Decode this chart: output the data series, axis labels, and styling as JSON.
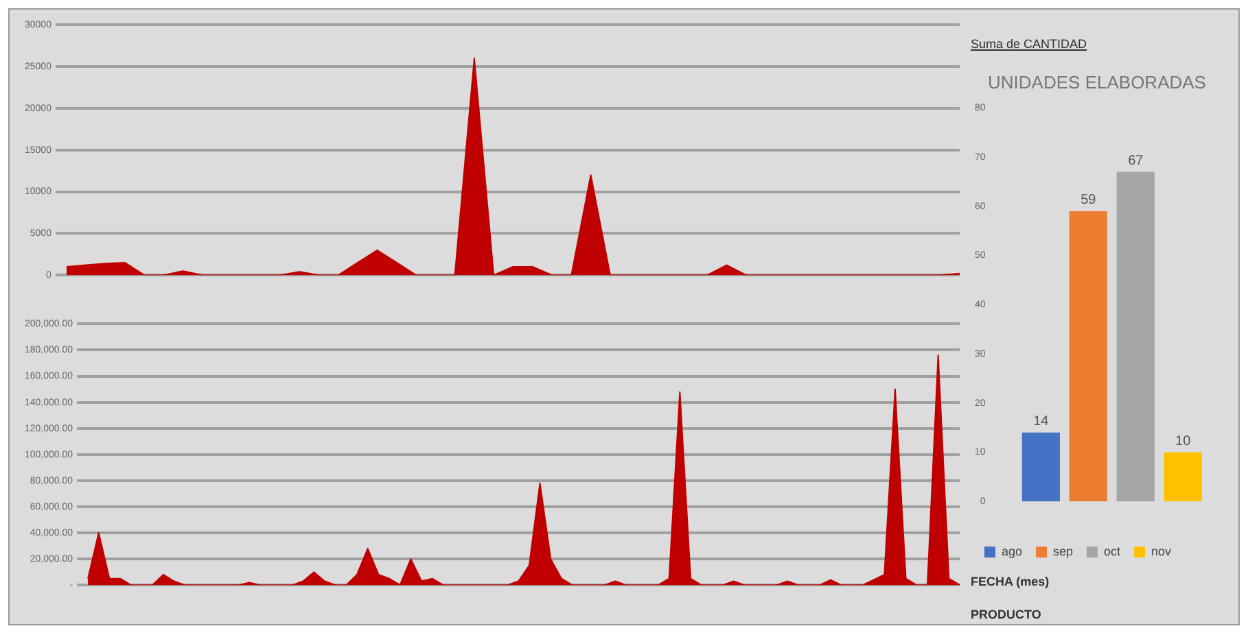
{
  "chart_data": [
    {
      "type": "area",
      "categories": [
        null,
        null,
        null,
        null,
        null,
        null,
        null,
        null,
        null,
        null,
        null,
        null,
        null,
        null,
        null,
        null,
        null,
        null,
        null,
        null,
        null,
        null,
        null,
        null,
        null,
        null,
        null,
        null,
        null,
        null,
        null,
        null,
        null,
        null,
        null,
        null,
        null,
        null,
        null,
        null,
        null,
        null,
        null,
        null,
        null,
        null,
        null
      ],
      "series": [
        {
          "color": "#c00000",
          "values": [
            1000,
            1200,
            1400,
            1500,
            0,
            0,
            500,
            0,
            0,
            0,
            0,
            0,
            400,
            0,
            0,
            1500,
            3000,
            1500,
            0,
            0,
            0,
            26000,
            0,
            1000,
            1000,
            0,
            0,
            12000,
            0,
            0,
            0,
            0,
            0,
            0,
            1200,
            0,
            0,
            0,
            0,
            0,
            0,
            0,
            0,
            0,
            0,
            0,
            200
          ]
        }
      ],
      "ylim": [
        0,
        30000
      ],
      "yticks": [
        0,
        5000,
        10000,
        15000,
        20000,
        25000,
        30000
      ],
      "grid": "y"
    },
    {
      "type": "area",
      "categories": [
        null,
        null,
        null,
        null,
        null,
        null,
        null,
        null,
        null,
        null,
        null,
        null,
        null,
        null,
        null,
        null,
        null,
        null,
        null,
        null,
        null,
        null,
        null,
        null,
        null,
        null,
        null,
        null,
        null,
        null,
        null,
        null,
        null,
        null,
        null,
        null,
        null,
        null,
        null,
        null,
        null,
        null,
        null,
        null,
        null,
        null,
        null,
        null,
        null,
        null,
        null,
        null,
        null,
        null,
        null,
        null,
        null,
        null,
        null,
        null,
        null,
        null,
        null,
        null,
        null,
        null,
        null,
        null,
        null,
        null,
        null,
        null,
        null,
        null,
        null,
        null,
        null,
        null,
        null,
        null,
        null,
        null
      ],
      "series": [
        {
          "color": "#c00000",
          "values": [
            5000,
            40000,
            5000,
            5000,
            0,
            0,
            0,
            8000,
            3000,
            0,
            0,
            0,
            0,
            0,
            0,
            2000,
            0,
            0,
            0,
            0,
            3000,
            10000,
            3000,
            0,
            0,
            8000,
            28000,
            8000,
            5000,
            0,
            20000,
            3000,
            5000,
            0,
            0,
            0,
            0,
            0,
            0,
            0,
            3000,
            15000,
            78000,
            20000,
            5000,
            0,
            0,
            0,
            0,
            3000,
            0,
            0,
            0,
            0,
            5000,
            148000,
            5000,
            0,
            0,
            0,
            3000,
            0,
            0,
            0,
            0,
            3000,
            0,
            0,
            0,
            4000,
            0,
            0,
            0,
            4000,
            8000,
            150000,
            5000,
            0,
            0,
            176000,
            5000,
            0
          ]
        }
      ],
      "ylim": [
        0,
        200000
      ],
      "yticks": [
        {
          "value": 0,
          "label": "-"
        },
        {
          "value": 20000,
          "label": "20,000.00"
        },
        {
          "value": 40000,
          "label": "40,000.00"
        },
        {
          "value": 60000,
          "label": "60,000.00"
        },
        {
          "value": 80000,
          "label": "80,000.00"
        },
        {
          "value": 100000,
          "label": "100,000.00"
        },
        {
          "value": 120000,
          "label": "120,000.00"
        },
        {
          "value": 140000,
          "label": "140,000.00"
        },
        {
          "value": 160000,
          "label": "160,000.00"
        },
        {
          "value": 180000,
          "label": "180,000.00"
        },
        {
          "value": 200000,
          "label": "200,000.00"
        }
      ],
      "grid": "y"
    },
    {
      "type": "bar",
      "title": "UNIDADES ELABORADAS",
      "categories": [
        null
      ],
      "series": [
        {
          "name": "ago",
          "color": "#4472c4",
          "values": [
            14
          ]
        },
        {
          "name": "sep",
          "color": "#ed7d31",
          "values": [
            59
          ]
        },
        {
          "name": "oct",
          "color": "#a5a5a5",
          "values": [
            67
          ]
        },
        {
          "name": "nov",
          "color": "#ffc000",
          "values": [
            10
          ]
        }
      ],
      "ylim": [
        0,
        80
      ],
      "yticks": [
        0,
        10,
        20,
        30,
        40,
        50,
        60,
        70,
        80
      ],
      "data_labels": true,
      "legend": "bottom",
      "annotations": [
        "Suma de CANTIDAD",
        "FECHA (mes)",
        "PRODUCTO"
      ]
    }
  ]
}
